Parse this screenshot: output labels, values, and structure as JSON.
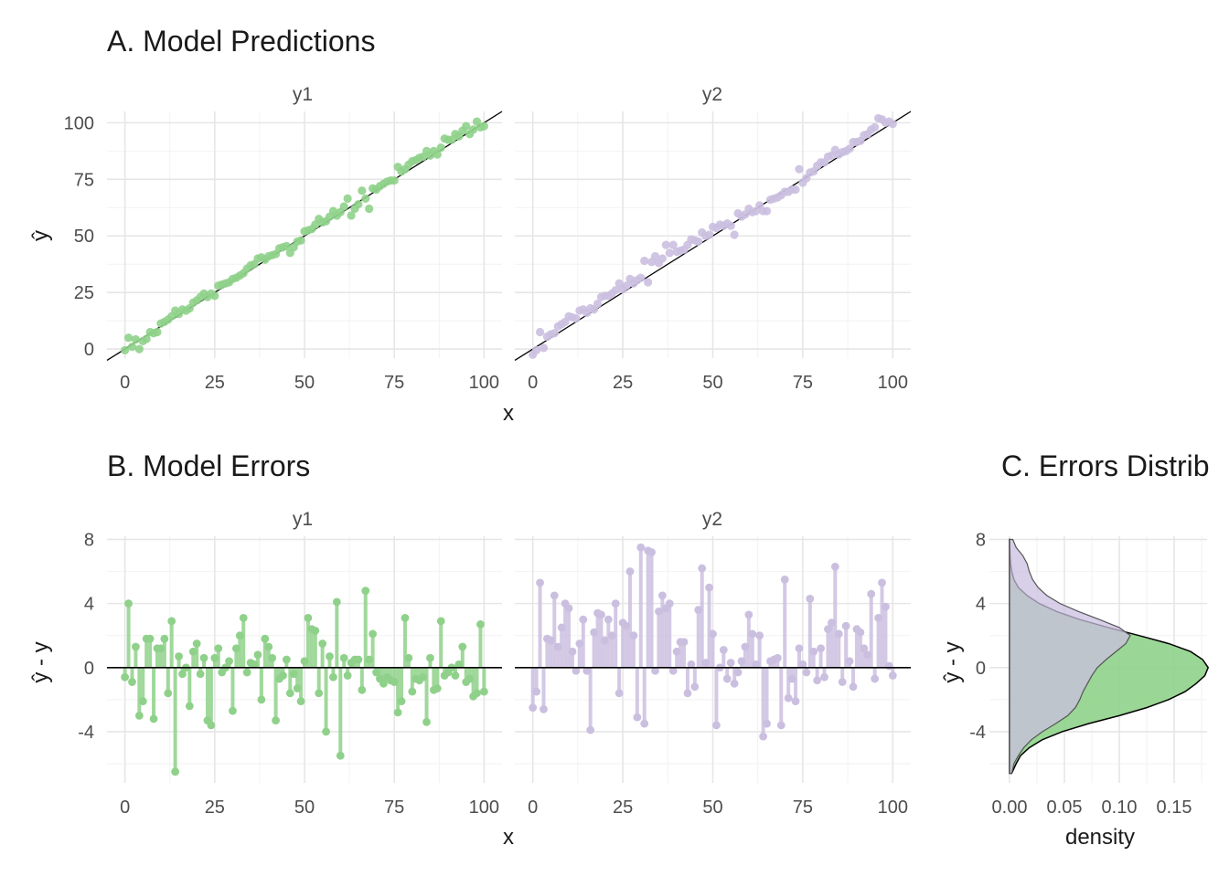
{
  "colors": {
    "y1": "#8fd18a",
    "y2": "#cbbfe0",
    "overlap": "#a6a9ba",
    "identity_line": "#000000"
  },
  "chart_data": [
    {
      "panel": "A",
      "type": "scatter",
      "title": "A. Model Predictions",
      "xlabel": "x",
      "ylabel": "ŷ",
      "xlim": [
        -5,
        105
      ],
      "ylim": [
        -4,
        105
      ],
      "xticks": [
        "0",
        "25",
        "50",
        "75",
        "100"
      ],
      "yticks": [
        "0",
        "25",
        "50",
        "75",
        "100"
      ],
      "facets": [
        "y1",
        "y2"
      ],
      "reference_line": "y = x",
      "grid": true,
      "series": [
        {
          "name": "y1",
          "x": [
            0,
            1,
            2,
            3,
            4,
            5,
            6,
            7,
            8,
            9,
            10,
            11,
            12,
            13,
            14,
            15,
            16,
            17,
            18,
            19,
            20,
            21,
            22,
            23,
            24,
            25,
            26,
            27,
            28,
            29,
            30,
            31,
            32,
            33,
            34,
            35,
            36,
            37,
            38,
            39,
            40,
            41,
            42,
            43,
            44,
            45,
            46,
            47,
            48,
            49,
            50,
            51,
            52,
            53,
            54,
            55,
            56,
            57,
            58,
            59,
            60,
            61,
            62,
            63,
            64,
            65,
            66,
            67,
            68,
            69,
            70,
            71,
            72,
            73,
            74,
            75,
            76,
            77,
            78,
            79,
            80,
            81,
            82,
            83,
            84,
            85,
            86,
            87,
            88,
            89,
            90,
            91,
            92,
            93,
            94,
            95,
            96,
            97,
            98,
            99,
            100
          ],
          "y": [
            -0.5,
            5.0,
            1.0,
            4.3,
            0.0,
            3.5,
            4.5,
            7.5,
            7.0,
            7.5,
            11.3,
            12.0,
            13.0,
            14.5,
            17.0,
            15.5,
            17.5,
            17.0,
            18.0,
            20.5,
            21.5,
            23.0,
            24.5,
            23.0,
            24.5,
            23.5,
            28.0,
            28.5,
            29.0,
            29.5,
            31.0,
            31.5,
            32.5,
            33.5,
            35.5,
            37.0,
            37.5,
            40.0,
            40.5,
            39.5,
            41.0,
            41.5,
            42.0,
            44.5,
            45.0,
            45.5,
            42.5,
            45.0,
            47.5,
            48.0,
            52.0,
            52.5,
            53.0,
            55.0,
            57.5,
            56.0,
            56.5,
            58.5,
            61.0,
            59.0,
            60.5,
            63.0,
            66.5,
            59.0,
            62.0,
            64.0,
            70.0,
            66.5,
            62.0,
            71.0,
            70.5,
            72.0,
            73.0,
            74.0,
            74.5,
            74.5,
            80.5,
            78.5,
            79.5,
            81.5,
            83.0,
            83.5,
            84.5,
            85.0,
            87.5,
            85.5,
            87.5,
            86.0,
            89.0,
            93.0,
            92.5,
            92.5,
            95.0,
            94.0,
            96.5,
            98.5,
            95.0,
            97.0,
            100.5,
            98.0,
            98.5
          ]
        },
        {
          "name": "y2",
          "x": [
            0,
            1,
            2,
            3,
            4,
            5,
            6,
            7,
            8,
            9,
            10,
            11,
            12,
            13,
            14,
            15,
            16,
            17,
            18,
            19,
            20,
            21,
            22,
            23,
            24,
            25,
            26,
            27,
            28,
            29,
            30,
            31,
            32,
            33,
            34,
            35,
            36,
            37,
            38,
            39,
            40,
            41,
            42,
            43,
            44,
            45,
            46,
            47,
            48,
            49,
            50,
            51,
            52,
            53,
            54,
            55,
            56,
            57,
            58,
            59,
            60,
            61,
            62,
            63,
            64,
            65,
            66,
            67,
            68,
            69,
            70,
            71,
            72,
            73,
            74,
            75,
            76,
            77,
            78,
            79,
            80,
            81,
            82,
            83,
            84,
            85,
            86,
            87,
            88,
            89,
            90,
            91,
            92,
            93,
            94,
            95,
            96,
            97,
            98,
            99,
            100
          ],
          "y": [
            -2.5,
            -0.5,
            7.5,
            0.5,
            5.5,
            6.5,
            7.0,
            10.0,
            11.0,
            12.0,
            14.5,
            14.0,
            13.5,
            17.0,
            17.5,
            16.0,
            18.0,
            17.5,
            20.0,
            23.0,
            23.5,
            23.5,
            24.5,
            26.0,
            29.0,
            26.5,
            28.0,
            31.0,
            29.0,
            30.5,
            31.5,
            39.0,
            29.5,
            38.5,
            41.0,
            38.0,
            40.0,
            46.0,
            42.5,
            46.0,
            43.0,
            43.5,
            44.0,
            46.0,
            48.5,
            48.0,
            47.5,
            51.5,
            50.0,
            50.5,
            54.0,
            53.5,
            55.0,
            54.5,
            55.5,
            54.5,
            50.5,
            60.0,
            58.5,
            59.5,
            62.0,
            60.5,
            61.0,
            63.5,
            61.0,
            61.0,
            66.0,
            66.5,
            67.0,
            68.0,
            69.5,
            69.5,
            70.5,
            70.5,
            79.5,
            73.5,
            75.5,
            78.0,
            78.5,
            81.0,
            82.5,
            82.5,
            85.0,
            85.5,
            88.0,
            86.0,
            87.0,
            87.5,
            88.5,
            91.5,
            91.5,
            92.0,
            94.5,
            95.0,
            97.0,
            98.0,
            102.0,
            101.5,
            100.0,
            100.5,
            99.5
          ]
        }
      ]
    },
    {
      "panel": "B",
      "type": "scatter",
      "title": "B. Model Errors",
      "xlabel": "x",
      "ylabel": "ŷ - y",
      "xlim": [
        -5,
        105
      ],
      "ylim": [
        -7.2,
        8.2
      ],
      "xticks": [
        "0",
        "25",
        "50",
        "75",
        "100"
      ],
      "yticks": [
        "-4",
        "0",
        "4",
        "8"
      ],
      "facets": [
        "y1",
        "y2"
      ],
      "reference_line": "y = 0",
      "grid": true,
      "series": [
        {
          "name": "y1",
          "x": [
            0,
            1,
            2,
            3,
            4,
            5,
            6,
            7,
            8,
            9,
            10,
            11,
            12,
            13,
            14,
            15,
            16,
            17,
            18,
            19,
            20,
            21,
            22,
            23,
            24,
            25,
            26,
            27,
            28,
            29,
            30,
            31,
            32,
            33,
            34,
            35,
            36,
            37,
            38,
            39,
            40,
            41,
            42,
            43,
            44,
            45,
            46,
            47,
            48,
            49,
            50,
            51,
            52,
            53,
            54,
            55,
            56,
            57,
            58,
            59,
            60,
            61,
            62,
            63,
            64,
            65,
            66,
            67,
            68,
            69,
            70,
            71,
            72,
            73,
            74,
            75,
            76,
            77,
            78,
            79,
            80,
            81,
            82,
            83,
            84,
            85,
            86,
            87,
            88,
            89,
            90,
            91,
            92,
            93,
            94,
            95,
            96,
            97,
            98,
            99,
            100
          ],
          "y": [
            -0.6,
            4.0,
            -0.9,
            1.3,
            -3.0,
            -2.1,
            1.8,
            1.8,
            -3.2,
            1.2,
            1.2,
            1.8,
            -1.6,
            2.9,
            -6.5,
            0.7,
            -0.4,
            0.0,
            -2.4,
            1.0,
            1.5,
            -0.4,
            0.6,
            -3.3,
            -3.6,
            0.6,
            1.2,
            -0.3,
            0.0,
            0.4,
            -2.7,
            1.2,
            2.0,
            3.1,
            -0.3,
            0.3,
            0.2,
            0.8,
            -2.0,
            1.8,
            1.3,
            0.6,
            -3.3,
            -0.7,
            -0.5,
            0.5,
            -1.6,
            -0.4,
            -1.3,
            -2.1,
            0.4,
            3.1,
            2.4,
            2.3,
            -1.6,
            1.5,
            -4.0,
            0.7,
            -0.6,
            4.1,
            -5.5,
            0.6,
            -0.5,
            0.3,
            0.5,
            0.5,
            -1.4,
            4.8,
            0.5,
            2.1,
            -0.3,
            -0.7,
            -1.0,
            -0.6,
            -0.8,
            -0.9,
            -2.8,
            -2.1,
            3.1,
            0.6,
            -1.5,
            -0.7,
            -0.8,
            -0.6,
            -3.4,
            0.6,
            -1.4,
            -1.3,
            2.9,
            -0.5,
            -0.3,
            0.0,
            -0.5,
            0.2,
            1.3,
            -0.9,
            -0.7,
            -1.8,
            -1.6,
            2.7,
            -1.5
          ]
        },
        {
          "name": "y2",
          "x": [
            0,
            1,
            2,
            3,
            4,
            5,
            6,
            7,
            8,
            9,
            10,
            11,
            12,
            13,
            14,
            15,
            16,
            17,
            18,
            19,
            20,
            21,
            22,
            23,
            24,
            25,
            26,
            27,
            28,
            29,
            30,
            31,
            32,
            33,
            34,
            35,
            36,
            37,
            38,
            39,
            40,
            41,
            42,
            43,
            44,
            45,
            46,
            47,
            48,
            49,
            50,
            51,
            52,
            53,
            54,
            55,
            56,
            57,
            58,
            59,
            60,
            61,
            62,
            63,
            64,
            65,
            66,
            67,
            68,
            69,
            70,
            71,
            72,
            73,
            74,
            75,
            76,
            77,
            78,
            79,
            80,
            81,
            82,
            83,
            84,
            85,
            86,
            87,
            88,
            89,
            90,
            91,
            92,
            93,
            94,
            95,
            96,
            97,
            98,
            99,
            100
          ],
          "y": [
            -2.5,
            -1.5,
            5.3,
            -2.6,
            1.8,
            1.7,
            4.5,
            1.3,
            2.5,
            4.0,
            3.7,
            1.0,
            -0.2,
            1.5,
            3.0,
            -0.2,
            -3.9,
            2.2,
            3.4,
            3.3,
            1.7,
            3.0,
            2.0,
            4.0,
            -1.6,
            2.8,
            2.6,
            6.0,
            2.0,
            -3.1,
            7.5,
            -3.5,
            7.3,
            7.2,
            -0.2,
            3.5,
            4.5,
            3.7,
            4.0,
            -0.2,
            1.0,
            1.6,
            1.6,
            -1.6,
            0.2,
            -1.2,
            3.6,
            6.2,
            0.3,
            5.0,
            2.1,
            -3.6,
            0.0,
            1.1,
            -0.7,
            0.3,
            -1.0,
            -0.3,
            0.4,
            1.3,
            3.3,
            2.1,
            0.2,
            2.0,
            -4.3,
            -3.5,
            0.4,
            0.5,
            0.6,
            -3.6,
            5.5,
            -1.9,
            -0.7,
            -2.1,
            1.2,
            0.2,
            -0.3,
            4.3,
            1.0,
            -0.8,
            1.2,
            -0.6,
            2.4,
            2.8,
            6.3,
            2.1,
            -0.9,
            2.6,
            0.4,
            -1.2,
            2.4,
            2.2,
            1.2,
            0.8,
            4.6,
            -0.7,
            3.1,
            5.3,
            3.8,
            0.1,
            -0.5
          ]
        }
      ]
    },
    {
      "panel": "C",
      "type": "area",
      "title": "C. Errors Distrib",
      "xlabel": "density",
      "ylabel": "ŷ - y",
      "xlim": [
        0,
        0.18
      ],
      "ylim": [
        -7.2,
        8.2
      ],
      "xticks": [
        "0.00",
        "0.05",
        "0.10",
        "0.15"
      ],
      "yticks": [
        "-4",
        "0",
        "4",
        "8"
      ],
      "grid": true,
      "series": [
        {
          "name": "y1",
          "y": [
            -6.6,
            -6.0,
            -5.5,
            -5.0,
            -4.5,
            -4.0,
            -3.5,
            -3.0,
            -2.5,
            -2.0,
            -1.5,
            -1.0,
            -0.5,
            0.0,
            0.5,
            1.0,
            1.5,
            2.0,
            2.5,
            3.0,
            3.5,
            4.0,
            4.5,
            5.0,
            5.5,
            6.0,
            6.5,
            7.0,
            7.5,
            8.0
          ],
          "density": [
            0.002,
            0.006,
            0.01,
            0.018,
            0.03,
            0.048,
            0.072,
            0.1,
            0.125,
            0.145,
            0.16,
            0.17,
            0.178,
            0.181,
            0.176,
            0.165,
            0.145,
            0.118,
            0.09,
            0.064,
            0.043,
            0.027,
            0.016,
            0.008,
            0.004,
            0.002,
            0.001,
            0.0005,
            0.0002,
            0.0001
          ]
        },
        {
          "name": "y2",
          "y": [
            -6.6,
            -6.0,
            -5.5,
            -5.0,
            -4.5,
            -4.0,
            -3.5,
            -3.0,
            -2.5,
            -2.0,
            -1.5,
            -1.0,
            -0.5,
            0.0,
            0.5,
            1.0,
            1.5,
            2.0,
            2.5,
            3.0,
            3.5,
            4.0,
            4.5,
            5.0,
            5.5,
            6.0,
            6.5,
            7.0,
            7.5,
            8.0
          ],
          "density": [
            0.002,
            0.004,
            0.008,
            0.013,
            0.02,
            0.03,
            0.042,
            0.053,
            0.06,
            0.064,
            0.067,
            0.071,
            0.075,
            0.08,
            0.088,
            0.097,
            0.106,
            0.11,
            0.1,
            0.082,
            0.063,
            0.046,
            0.034,
            0.026,
            0.021,
            0.018,
            0.016,
            0.012,
            0.006,
            0.003
          ]
        }
      ]
    }
  ]
}
